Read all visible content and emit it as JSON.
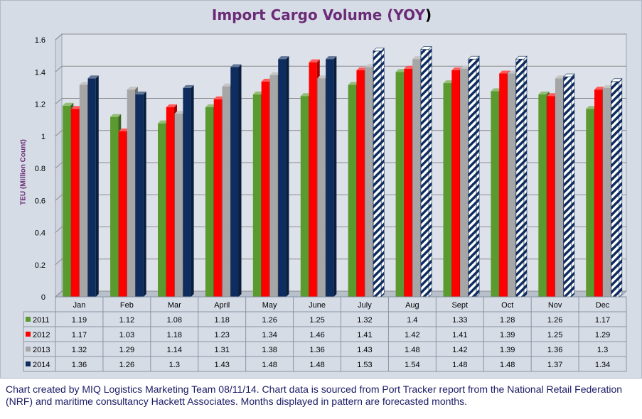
{
  "chart_data": {
    "type": "bar",
    "title": "Import Cargo Volume (YOY",
    "title_suffix": ")",
    "ylabel": "TEU (Million Count)",
    "ylim": [
      0,
      1.6
    ],
    "yticks": [
      "0",
      "0.2",
      "0.4",
      "0.6",
      "0.8",
      "1",
      "1.2",
      "1.4",
      "1.6"
    ],
    "grid": true,
    "categories": [
      "Jan",
      "Feb",
      "Mar",
      "April",
      "May",
      "June",
      "July",
      "Aug",
      "Sept",
      "Oct",
      "Nov",
      "Dec"
    ],
    "series": [
      {
        "name": "2011",
        "color": "#5b9a2e",
        "values": [
          1.19,
          1.12,
          1.08,
          1.18,
          1.26,
          1.25,
          1.32,
          1.4,
          1.33,
          1.28,
          1.26,
          1.17
        ]
      },
      {
        "name": "2012",
        "color": "#ff0000",
        "values": [
          1.17,
          1.03,
          1.18,
          1.23,
          1.34,
          1.46,
          1.41,
          1.42,
          1.41,
          1.39,
          1.25,
          1.29
        ]
      },
      {
        "name": "2013",
        "color": "#a6a6a6",
        "values": [
          1.32,
          1.29,
          1.14,
          1.31,
          1.38,
          1.36,
          1.43,
          1.48,
          1.42,
          1.39,
          1.36,
          1.3
        ]
      },
      {
        "name": "2014",
        "color": "#0e2d5e",
        "values": [
          1.36,
          1.26,
          1.3,
          1.43,
          1.48,
          1.48,
          1.53,
          1.54,
          1.48,
          1.48,
          1.37,
          1.34
        ]
      }
    ],
    "data_table": [
      [
        "1.19",
        "1.12",
        "1.08",
        "1.18",
        "1.26",
        "1.25",
        "1.32",
        "1.4",
        "1.33",
        "1.28",
        "1.26",
        "1.17"
      ],
      [
        "1.17",
        "1.03",
        "1.18",
        "1.23",
        "1.34",
        "1.46",
        "1.41",
        "1.42",
        "1.41",
        "1.39",
        "1.25",
        "1.29"
      ],
      [
        "1.32",
        "1.29",
        "1.14",
        "1.31",
        "1.38",
        "1.36",
        "1.43",
        "1.48",
        "1.42",
        "1.39",
        "1.36",
        "1.3"
      ],
      [
        "1.36",
        "1.26",
        "1.3",
        "1.43",
        "1.48",
        "1.48",
        "1.53",
        "1.54",
        "1.48",
        "1.48",
        "1.37",
        "1.34"
      ]
    ],
    "forecast_from_index": 6,
    "forecast_series": "2014",
    "forecast_pattern": "striped",
    "legend_placement": "data-table-left"
  },
  "caption": "Chart created by MIQ Logistics Marketing Team 08/11/14. Chart data is sourced from Port Tracker report from the National Retail Federation (NRF) and maritime consultancy Hackett Associates. Months displayed in pattern are forecasted months."
}
